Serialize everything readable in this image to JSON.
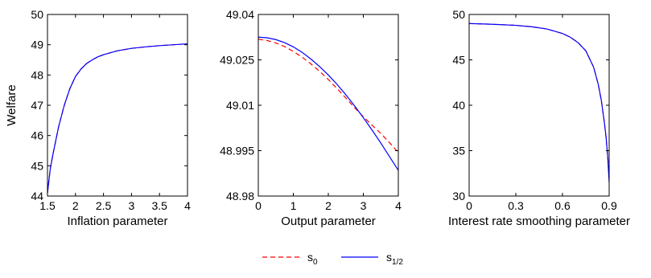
{
  "colors": {
    "s0": "#ff0000",
    "s_half": "#0000ff"
  },
  "legend": {
    "placement": "bottom-center",
    "entries": [
      {
        "series": "s0",
        "base": "s",
        "sub": "0",
        "style": "dashed"
      },
      {
        "series": "s_half",
        "base": "s",
        "sub": "1/2",
        "style": "solid"
      }
    ]
  },
  "chart_data": [
    {
      "type": "line",
      "xlabel": "Inflation parameter",
      "ylabel": "Welfare",
      "xlim": [
        1.5,
        4
      ],
      "ylim": [
        44,
        50
      ],
      "xticks": [
        1.5,
        2,
        2.5,
        3,
        3.5,
        4
      ],
      "xtick_labels": [
        "1.5",
        "2",
        "2.5",
        "3",
        "3.5",
        "4"
      ],
      "yticks": [
        44,
        45,
        46,
        47,
        48,
        49,
        50
      ],
      "ytick_labels": [
        "44",
        "45",
        "46",
        "47",
        "48",
        "49",
        "50"
      ],
      "grid": false,
      "x": [
        1.5,
        1.55,
        1.6,
        1.7,
        1.8,
        1.9,
        2.0,
        2.1,
        2.2,
        2.3,
        2.4,
        2.5,
        2.75,
        3.0,
        3.25,
        3.5,
        3.75,
        4.0
      ],
      "series": [
        {
          "key": "s0",
          "style": "dashed",
          "values": [
            44.1,
            44.9,
            45.4,
            46.3,
            47.0,
            47.55,
            47.95,
            48.2,
            48.38,
            48.5,
            48.6,
            48.67,
            48.8,
            48.88,
            48.93,
            48.97,
            49.0,
            49.03
          ]
        },
        {
          "key": "s_half",
          "style": "solid",
          "values": [
            44.1,
            44.9,
            45.4,
            46.3,
            47.0,
            47.55,
            47.95,
            48.2,
            48.38,
            48.5,
            48.6,
            48.67,
            48.8,
            48.88,
            48.93,
            48.97,
            49.0,
            49.03
          ]
        }
      ]
    },
    {
      "type": "line",
      "xlabel": "Output parameter",
      "ylabel": "",
      "xlim": [
        0,
        4
      ],
      "ylim": [
        48.98,
        49.04
      ],
      "xticks": [
        0,
        1,
        2,
        3,
        4
      ],
      "xtick_labels": [
        "0",
        "1",
        "2",
        "3",
        "4"
      ],
      "yticks": [
        48.98,
        48.995,
        49.01,
        49.025,
        49.04
      ],
      "ytick_labels": [
        "48.98",
        "48.995",
        "49.01",
        "49.025",
        "49.04"
      ],
      "grid": false,
      "x": [
        0,
        0.25,
        0.5,
        0.75,
        1.0,
        1.25,
        1.5,
        1.75,
        2.0,
        2.25,
        2.5,
        2.75,
        3.0,
        3.25,
        3.5,
        3.75,
        4.0
      ],
      "series": [
        {
          "key": "s0",
          "style": "dashed",
          "values": [
            49.0318,
            49.0314,
            49.0306,
            49.0294,
            49.0278,
            49.0259,
            49.0237,
            49.0212,
            49.0185,
            49.0155,
            49.0124,
            49.0092,
            49.0062,
            49.0034,
            49.0007,
            48.9976,
            48.9944
          ]
        },
        {
          "key": "s_half",
          "style": "solid",
          "values": [
            49.0325,
            49.0323,
            49.0317,
            49.0307,
            49.0293,
            49.0275,
            49.0253,
            49.0228,
            49.02,
            49.0169,
            49.0135,
            49.0098,
            49.0059,
            49.0018,
            48.9975,
            48.993,
            48.9885
          ]
        }
      ]
    },
    {
      "type": "line",
      "xlabel": "Interest rate smoothing parameter",
      "ylabel": "",
      "xlim": [
        0,
        0.9
      ],
      "ylim": [
        30,
        50
      ],
      "xticks": [
        0,
        0.3,
        0.6,
        0.9
      ],
      "xtick_labels": [
        "0",
        "0.3",
        "0.6",
        "0.9"
      ],
      "yticks": [
        30,
        35,
        40,
        45,
        50
      ],
      "ytick_labels": [
        "30",
        "35",
        "40",
        "45",
        "50"
      ],
      "grid": false,
      "x": [
        0,
        0.1,
        0.2,
        0.3,
        0.4,
        0.5,
        0.6,
        0.65,
        0.7,
        0.75,
        0.8,
        0.83,
        0.85,
        0.87,
        0.88,
        0.89,
        0.895,
        0.9
      ],
      "series": [
        {
          "key": "s0",
          "style": "dashed",
          "values": [
            49.0,
            48.95,
            48.88,
            48.8,
            48.65,
            48.4,
            47.9,
            47.5,
            46.9,
            46.0,
            44.2,
            42.3,
            40.5,
            38.0,
            36.5,
            34.5,
            33.5,
            32.0
          ]
        },
        {
          "key": "s_half",
          "style": "solid",
          "values": [
            49.0,
            48.95,
            48.88,
            48.8,
            48.65,
            48.4,
            47.9,
            47.5,
            46.9,
            46.0,
            44.2,
            42.3,
            40.5,
            38.0,
            36.5,
            34.5,
            33.0,
            31.5
          ]
        }
      ]
    }
  ]
}
